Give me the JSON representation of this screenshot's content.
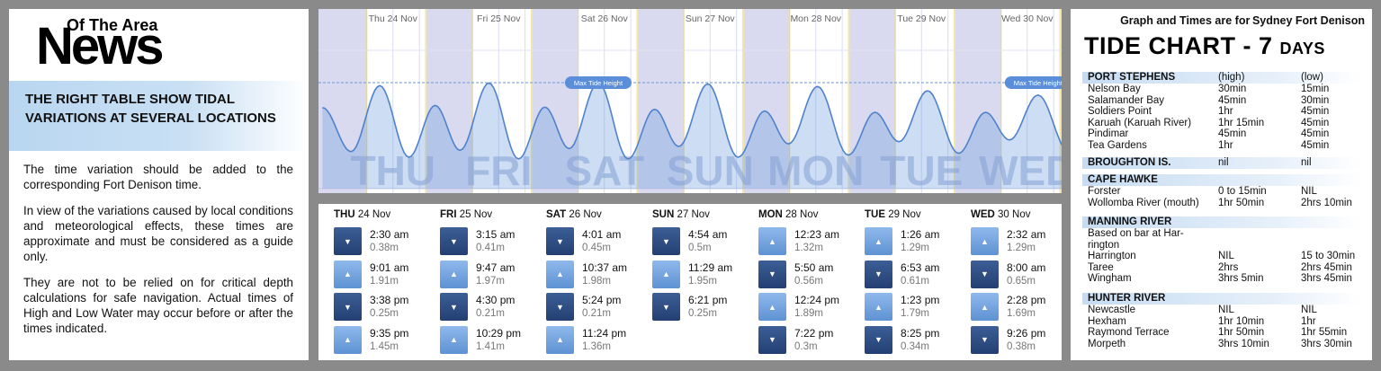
{
  "logo": {
    "small": "Of The Area",
    "big": "News"
  },
  "left": {
    "banner": "THE RIGHT TABLE SHOW TIDAL VARIATIONS AT SEVERAL LOCATIONS",
    "p1": "The time variation should be added to the corresponding Fort Denison time.",
    "p2": "In view of the variations caused by local conditions and meteorological effects, these times are approximate and must be considered as a guide only.",
    "p3": "They are not to be relied on for critical depth calculations for safe navigation. Actual times of High and Low Water may occur before or after the times indicated."
  },
  "chart": {
    "max_label": "Max Tide Height",
    "days": [
      {
        "label": "Thu 24 Nov",
        "big": "THU"
      },
      {
        "label": "Fri 25 Nov",
        "big": "FRI"
      },
      {
        "label": "Sat 26 Nov",
        "big": "SAT"
      },
      {
        "label": "Sun 27 Nov",
        "big": "SUN"
      },
      {
        "label": "Mon 28 Nov",
        "big": "MON"
      },
      {
        "label": "Tue 29 Nov",
        "big": "TUE"
      },
      {
        "label": "Wed 30 Nov",
        "big": "WED"
      }
    ]
  },
  "chart_data": {
    "type": "area",
    "x_unit": "hours from Thu 24 Nov 00:00",
    "points": [
      {
        "day": 0,
        "time": "2:30 am",
        "h": 0.38
      },
      {
        "day": 0,
        "time": "9:01 am",
        "h": 1.91
      },
      {
        "day": 0,
        "time": "3:38 pm",
        "h": 0.25
      },
      {
        "day": 0,
        "time": "9:35 pm",
        "h": 1.45
      },
      {
        "day": 1,
        "time": "3:15 am",
        "h": 0.41
      },
      {
        "day": 1,
        "time": "9:47 am",
        "h": 1.97
      },
      {
        "day": 1,
        "time": "4:30 pm",
        "h": 0.21
      },
      {
        "day": 1,
        "time": "10:29 pm",
        "h": 1.41
      },
      {
        "day": 2,
        "time": "4:01 am",
        "h": 0.45
      },
      {
        "day": 2,
        "time": "10:37 am",
        "h": 1.98
      },
      {
        "day": 2,
        "time": "5:24 pm",
        "h": 0.21
      },
      {
        "day": 2,
        "time": "11:24 pm",
        "h": 1.36
      },
      {
        "day": 3,
        "time": "4:54 am",
        "h": 0.5
      },
      {
        "day": 3,
        "time": "11:29 am",
        "h": 1.95
      },
      {
        "day": 3,
        "time": "6:21 pm",
        "h": 0.25
      },
      {
        "day": 4,
        "time": "12:23 am",
        "h": 1.32
      },
      {
        "day": 4,
        "time": "5:50 am",
        "h": 0.56
      },
      {
        "day": 4,
        "time": "12:24 pm",
        "h": 1.89
      },
      {
        "day": 4,
        "time": "7:22 pm",
        "h": 0.3
      },
      {
        "day": 5,
        "time": "1:26 am",
        "h": 1.29
      },
      {
        "day": 5,
        "time": "6:53 am",
        "h": 0.61
      },
      {
        "day": 5,
        "time": "1:23 pm",
        "h": 1.79
      },
      {
        "day": 5,
        "time": "8:25 pm",
        "h": 0.34
      },
      {
        "day": 6,
        "time": "2:32 am",
        "h": 1.29
      },
      {
        "day": 6,
        "time": "8:00 am",
        "h": 0.65
      },
      {
        "day": 6,
        "time": "2:28 pm",
        "h": 1.69
      },
      {
        "day": 6,
        "time": "9:26 pm",
        "h": 0.38
      }
    ],
    "max_height": 1.98
  },
  "table": [
    {
      "day": "THU",
      "date": "24 Nov",
      "tides": [
        {
          "type": "low",
          "time": "2:30 am",
          "height": "0.38m"
        },
        {
          "type": "high",
          "time": "9:01 am",
          "height": "1.91m"
        },
        {
          "type": "low",
          "time": "3:38 pm",
          "height": "0.25m"
        },
        {
          "type": "high",
          "time": "9:35 pm",
          "height": "1.45m"
        }
      ]
    },
    {
      "day": "FRI",
      "date": "25 Nov",
      "tides": [
        {
          "type": "low",
          "time": "3:15 am",
          "height": "0.41m"
        },
        {
          "type": "high",
          "time": "9:47 am",
          "height": "1.97m"
        },
        {
          "type": "low",
          "time": "4:30 pm",
          "height": "0.21m"
        },
        {
          "type": "high",
          "time": "10:29 pm",
          "height": "1.41m"
        }
      ]
    },
    {
      "day": "SAT",
      "date": "26 Nov",
      "tides": [
        {
          "type": "low",
          "time": "4:01 am",
          "height": "0.45m"
        },
        {
          "type": "high",
          "time": "10:37 am",
          "height": "1.98m"
        },
        {
          "type": "low",
          "time": "5:24 pm",
          "height": "0.21m"
        },
        {
          "type": "high",
          "time": "11:24 pm",
          "height": "1.36m"
        }
      ]
    },
    {
      "day": "SUN",
      "date": "27 Nov",
      "tides": [
        {
          "type": "low",
          "time": "4:54 am",
          "height": "0.5m"
        },
        {
          "type": "high",
          "time": "11:29 am",
          "height": "1.95m"
        },
        {
          "type": "low",
          "time": "6:21 pm",
          "height": "0.25m"
        }
      ]
    },
    {
      "day": "MON",
      "date": "28 Nov",
      "tides": [
        {
          "type": "high",
          "time": "12:23 am",
          "height": "1.32m"
        },
        {
          "type": "low",
          "time": "5:50 am",
          "height": "0.56m"
        },
        {
          "type": "high",
          "time": "12:24 pm",
          "height": "1.89m"
        },
        {
          "type": "low",
          "time": "7:22 pm",
          "height": "0.3m"
        }
      ]
    },
    {
      "day": "TUE",
      "date": "29 Nov",
      "tides": [
        {
          "type": "high",
          "time": "1:26 am",
          "height": "1.29m"
        },
        {
          "type": "low",
          "time": "6:53 am",
          "height": "0.61m"
        },
        {
          "type": "high",
          "time": "1:23 pm",
          "height": "1.79m"
        },
        {
          "type": "low",
          "time": "8:25 pm",
          "height": "0.34m"
        }
      ]
    },
    {
      "day": "WED",
      "date": "30 Nov",
      "tides": [
        {
          "type": "high",
          "time": "2:32 am",
          "height": "1.29m"
        },
        {
          "type": "low",
          "time": "8:00 am",
          "height": "0.65m"
        },
        {
          "type": "high",
          "time": "2:28 pm",
          "height": "1.69m"
        },
        {
          "type": "low",
          "time": "9:26 pm",
          "height": "0.38m"
        }
      ]
    }
  ],
  "right": {
    "note_prefix": "Graph and Times are for",
    "note_place": "Sydney Fort Denison",
    "title": "TIDE CHART",
    "title_suffix": "- 7",
    "title_days": "DAYS",
    "sections": [
      {
        "name": "PORT STEPHENS",
        "c1": "(high)",
        "c2": "(low)",
        "rows": [
          {
            "name": "Nelson Bay",
            "c1": "30min",
            "c2": "15min"
          },
          {
            "name": "Salamander Bay",
            "c1": "45min",
            "c2": "30min"
          },
          {
            "name": "Soldiers Point",
            "c1": "1hr",
            "c2": "45min"
          },
          {
            "name": "Karuah (Karuah River)",
            "c1": "1hr 15min",
            "c2": "45min"
          },
          {
            "name": "Pindimar",
            "c1": "45min",
            "c2": "45min"
          },
          {
            "name": "Tea Gardens",
            "c1": "1hr",
            "c2": "45min"
          }
        ]
      },
      {
        "name": "BROUGHTON IS.",
        "c1": "nil",
        "c2": "nil",
        "rows": []
      },
      {
        "name": "CAPE HAWKE",
        "c1": "",
        "c2": "",
        "rows": [
          {
            "name": "Forster",
            "c1": "0 to 15min",
            "c2": "NIL"
          },
          {
            "name": "Wollomba River (mouth)",
            "c1": "1hr 50min",
            "c2": "2hrs 10min"
          }
        ]
      },
      {
        "name": "MANNING RIVER",
        "c1": "",
        "c2": "",
        "rows": [
          {
            "name": "Based on bar at Har-",
            "c1": "",
            "c2": ""
          },
          {
            "name": "rington",
            "c1": "",
            "c2": ""
          },
          {
            "name": "Harrington",
            "c1": "NIL",
            "c2": "15 to 30min"
          },
          {
            "name": "Taree",
            "c1": "2hrs",
            "c2": "2hrs 45min"
          },
          {
            "name": "Wingham",
            "c1": "3hrs 5min",
            "c2": "3hrs 45min"
          }
        ]
      },
      {
        "name": "HUNTER RIVER",
        "c1": "",
        "c2": "",
        "rows": [
          {
            "name": "Newcastle",
            "c1": "NIL",
            "c2": "NIL"
          },
          {
            "name": "Hexham",
            "c1": "1hr 10min",
            "c2": "1hr"
          },
          {
            "name": "Raymond Terrace",
            "c1": "1hr 50min",
            "c2": "1hr 55min"
          },
          {
            "name": "Morpeth",
            "c1": "3hrs 10min",
            "c2": "3hrs 30min"
          }
        ]
      }
    ]
  },
  "colors": {
    "low": "#2c4a80",
    "high": "#77a6e0",
    "accent": "#5b8fd6"
  }
}
